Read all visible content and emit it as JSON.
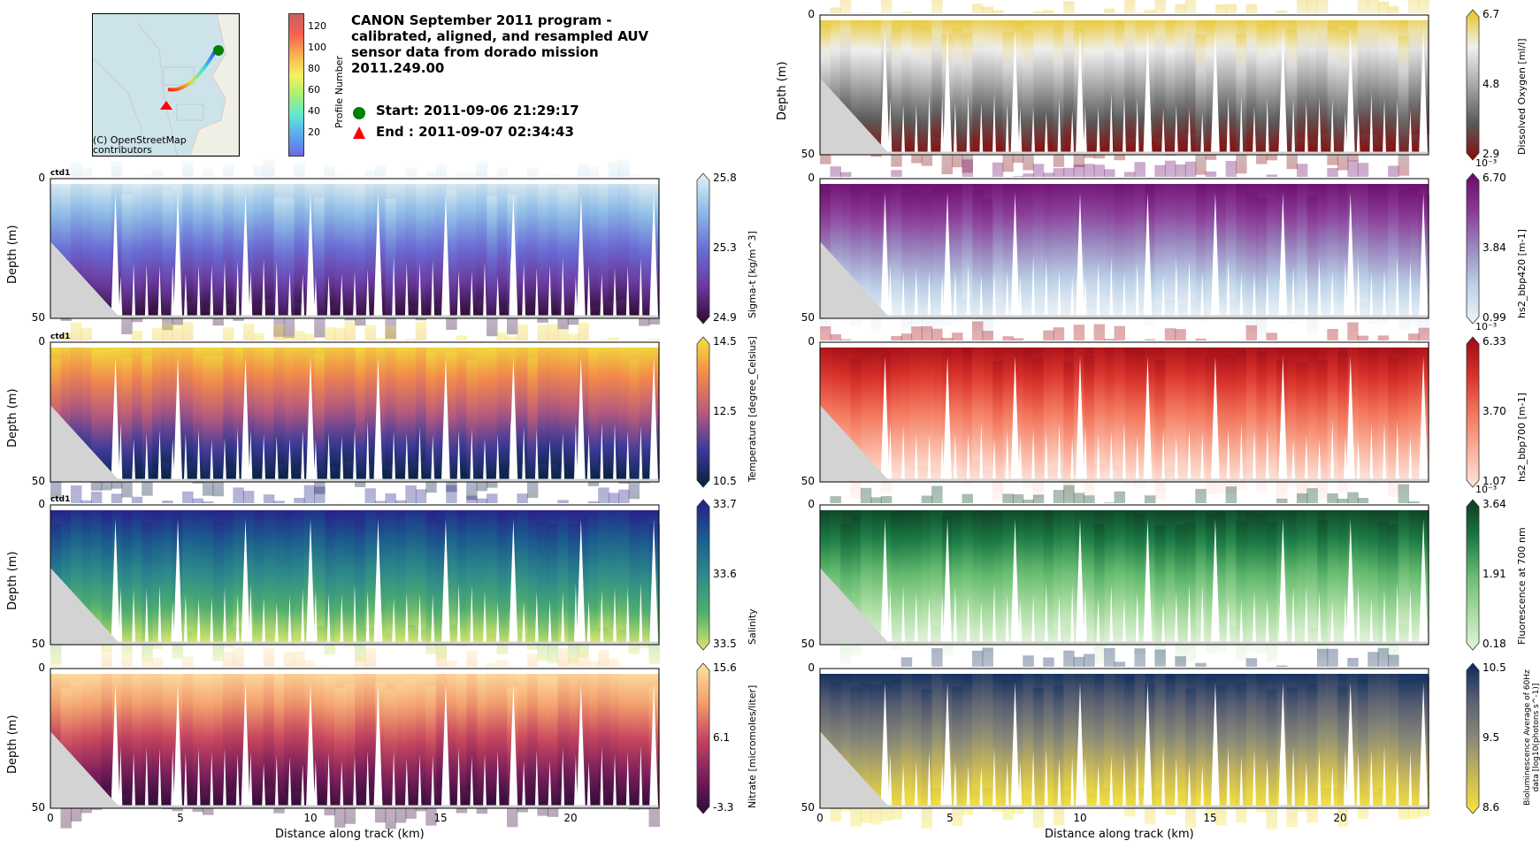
{
  "header": {
    "title_lines": [
      "CANON September 2011 program -",
      "calibrated, aligned, and resampled AUV",
      "sensor data from dorado mission",
      "2011.249.00"
    ],
    "start_label": "Start: 2011-09-06 21:29:17",
    "end_label": "End  : 2011-09-07 02:34:43",
    "map_attribution_line1": "(C) OpenStreetMap",
    "map_attribution_line2": "contributors",
    "profile_colorbar": {
      "label": "Profile Number",
      "ticks": [
        "20",
        "40",
        "60",
        "80",
        "100",
        "120"
      ]
    }
  },
  "chart_data": [
    {
      "type": "heatmap",
      "panel": "left-1",
      "variable": "Sigma-t [kg/m^3]",
      "colormap": "dense",
      "clim": [
        24.9,
        25.8
      ],
      "cbar_ticks": [
        "24.9",
        "25.3",
        "25.8"
      ],
      "annotation": "ctd1",
      "ylabel": "Depth (m)",
      "ylim": [
        50,
        0
      ],
      "yticks": [
        "0",
        "50"
      ],
      "xlim": [
        0,
        23.4
      ],
      "colors": [
        "#e6f1f2",
        "#8dbde6",
        "#6a6fd6",
        "#6b3aa0",
        "#2c0a2e"
      ]
    },
    {
      "type": "heatmap",
      "panel": "left-2",
      "variable": "Temperature [degree_Celsius]",
      "colormap": "thermal",
      "clim": [
        10.5,
        14.5
      ],
      "cbar_ticks": [
        "10.5",
        "12.5",
        "14.5"
      ],
      "annotation": "ctd1",
      "ylabel": "Depth (m)",
      "ylim": [
        50,
        0
      ],
      "yticks": [
        "0",
        "50"
      ],
      "xlim": [
        0,
        23.4
      ],
      "colors": [
        "#f0e43a",
        "#f3894a",
        "#b85a7e",
        "#3c3a9a",
        "#03213a"
      ]
    },
    {
      "type": "heatmap",
      "panel": "left-3",
      "variable": "Salinity",
      "colormap": "haline",
      "clim": [
        33.5,
        33.7
      ],
      "cbar_ticks": [
        "33.5",
        "33.6",
        "33.7"
      ],
      "annotation": "ctd1",
      "ylabel": "Depth (m)",
      "ylim": [
        50,
        0
      ],
      "yticks": [
        "0",
        "50"
      ],
      "xlim": [
        0,
        23.4
      ],
      "colors": [
        "#2a1a8a",
        "#1a5a8e",
        "#2e8a8a",
        "#4fae6e",
        "#d9e86a"
      ]
    },
    {
      "type": "heatmap",
      "panel": "left-4",
      "variable": "Nitrate [micromoles/liter]",
      "colormap": "matter_r",
      "clim": [
        -3.3,
        15.6
      ],
      "cbar_ticks": [
        "-3.3",
        "6.1",
        "15.6"
      ],
      "annotation": "",
      "ylabel": "Depth (m)",
      "ylim": [
        50,
        0
      ],
      "yticks": [
        "0",
        "50"
      ],
      "xlim": [
        0,
        23.4
      ],
      "xticks": [
        "0",
        "5",
        "10",
        "15",
        "20"
      ],
      "xlabel": "Distance along track (km)",
      "colors": [
        "#fde3a6",
        "#f4a26e",
        "#c8465e",
        "#7a1f5c",
        "#2d0b35"
      ]
    },
    {
      "type": "heatmap",
      "panel": "right-0",
      "variable": "Dissolved Oxygen [ml/l]",
      "colormap": "oxy",
      "clim": [
        2.9,
        6.7
      ],
      "cbar_ticks": [
        "2.9",
        "4.8",
        "6.7"
      ],
      "annotation": "",
      "ylabel": "Depth (m)",
      "ylim": [
        50,
        0
      ],
      "yticks": [
        "0",
        "50"
      ],
      "xlim": [
        0,
        23.4
      ],
      "colors": [
        "#e8c41e",
        "#f0f0f0",
        "#a8a8a8",
        "#5a5a5a",
        "#8a0a0a"
      ]
    },
    {
      "type": "heatmap",
      "panel": "right-1",
      "variable": "hs2_bbp420 [m-1]",
      "colormap": "BuPu",
      "clim": [
        0.00099,
        0.0067
      ],
      "cbar_ticks": [
        "0.99",
        "3.84",
        "6.70"
      ],
      "cbar_multiplier": "10^-3",
      "annotation": "",
      "ylabel": "",
      "ylim": [
        50,
        0
      ],
      "yticks": [
        "0",
        "50"
      ],
      "xlim": [
        0,
        23.4
      ],
      "colors": [
        "#6a0a6a",
        "#8a3a96",
        "#9a8ac0",
        "#bcd2e8",
        "#eef4f8"
      ]
    },
    {
      "type": "heatmap",
      "panel": "right-2",
      "variable": "hs2_bbp700 [m-1]",
      "colormap": "Reds",
      "clim": [
        0.00107,
        0.00633
      ],
      "cbar_ticks": [
        "1.07",
        "3.70",
        "6.33"
      ],
      "cbar_multiplier": "10^-3",
      "annotation": "",
      "ylabel": "",
      "ylim": [
        50,
        0
      ],
      "yticks": [
        "0",
        "50"
      ],
      "xlim": [
        0,
        23.4
      ],
      "colors": [
        "#9a0a14",
        "#d8302a",
        "#f2745a",
        "#fab09a",
        "#fde6de"
      ]
    },
    {
      "type": "heatmap",
      "panel": "right-3",
      "variable": "Fluorescence at 700 nm",
      "colormap": "Greens",
      "clim": [
        0.00018,
        0.00364
      ],
      "cbar_ticks": [
        "0.18",
        "1.91",
        "3.64"
      ],
      "cbar_multiplier": "10^-3",
      "annotation": "",
      "ylabel": "",
      "ylim": [
        50,
        0
      ],
      "yticks": [
        "0",
        "50"
      ],
      "xlim": [
        0,
        23.4
      ],
      "colors": [
        "#0e3a22",
        "#1a7a44",
        "#66bb70",
        "#a8dca0",
        "#e4f4dc"
      ]
    },
    {
      "type": "heatmap",
      "panel": "right-4",
      "variable": "Bioluminescence Average of 60Hz data [log10(photons s^-1)]",
      "colormap": "cividis",
      "clim": [
        8.6,
        10.5
      ],
      "cbar_ticks": [
        "8.6",
        "9.5",
        "10.5"
      ],
      "annotation": "",
      "ylabel": "",
      "ylim": [
        50,
        0
      ],
      "yticks": [
        "0",
        "50"
      ],
      "xlim": [
        0,
        23.4
      ],
      "xticks": [
        "0",
        "5",
        "10",
        "15",
        "20"
      ],
      "xlabel": "Distance along track (km)",
      "colors": [
        "#0a2a5c",
        "#5a6072",
        "#8a8a78",
        "#c8b858",
        "#f8e43a"
      ]
    }
  ],
  "colors": {
    "seafloor": "#d3d3d3",
    "start_marker": "#008000",
    "end_marker": "#ff0000",
    "map_water": "#cde3ea"
  }
}
